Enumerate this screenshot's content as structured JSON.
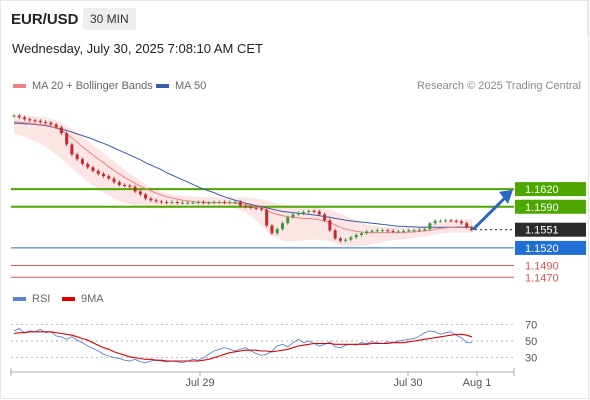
{
  "header": {
    "symbol": "EUR/USD",
    "timeframe": "30 MIN",
    "datetime": "Wednesday, July 30, 2025 7:08:10 AM CET",
    "copyright": "Research © 2025 Trading Central"
  },
  "legend": {
    "ma20": "MA 20 + Bollinger Bands",
    "ma50": "MA 50",
    "rsi": "RSI",
    "ma9": "9MA"
  },
  "colors": {
    "ma20": "#f08080",
    "ma50": "#3b5da8",
    "resistance": "#4ea600",
    "support": "#1f6fd6",
    "target": "#e05555",
    "arrow": "#2a66c2",
    "rsi": "#5b82d6",
    "ma9": "#e00000",
    "bollinger": "#fbe0e0"
  },
  "chart_data": [
    {
      "type": "candlestick",
      "ylim": [
        1.1445,
        1.1775
      ],
      "x_ticks": [
        "Jul 29",
        "Jul 30",
        "Aug 1"
      ],
      "last_price": 1.1551,
      "close": [
        1.1745,
        1.1742,
        1.1739,
        1.1737,
        1.1736,
        1.1734,
        1.1733,
        1.173,
        1.1725,
        1.1715,
        1.1696,
        1.1679,
        1.1671,
        1.1663,
        1.1657,
        1.1651,
        1.1646,
        1.1642,
        1.1638,
        1.1632,
        1.1627,
        1.1626,
        1.1624,
        1.1616,
        1.1611,
        1.1604,
        1.1601,
        1.1599,
        1.1598,
        1.1597,
        1.1598,
        1.1597,
        1.1597,
        1.1597,
        1.1597,
        1.1598,
        1.1597,
        1.1597,
        1.1598,
        1.1598,
        1.1597,
        1.1598,
        1.1598,
        1.1592,
        1.159,
        1.1588,
        1.1587,
        1.1585,
        1.1558,
        1.1545,
        1.1552,
        1.1562,
        1.1572,
        1.1577,
        1.1579,
        1.1581,
        1.1583,
        1.1582,
        1.1577,
        1.1567,
        1.155,
        1.1536,
        1.1532,
        1.1534,
        1.1538,
        1.1542,
        1.1545,
        1.1548,
        1.1549,
        1.155,
        1.155,
        1.1549,
        1.1548,
        1.1548,
        1.1549,
        1.155,
        1.155,
        1.1551,
        1.1552,
        1.1562,
        1.1566,
        1.1566,
        1.1567,
        1.1566,
        1.1565,
        1.1562,
        1.1555,
        1.1551
      ],
      "ma20": [
        1.1735,
        1.1734,
        1.1733,
        1.1732,
        1.1731,
        1.173,
        1.1729,
        1.1727,
        1.1724,
        1.172,
        1.1714,
        1.1707,
        1.17,
        1.1692,
        1.1685,
        1.1678,
        1.1671,
        1.1665,
        1.1658,
        1.1652,
        1.1646,
        1.164,
        1.1635,
        1.163,
        1.1625,
        1.1621,
        1.1617,
        1.1613,
        1.161,
        1.1607,
        1.1605,
        1.1603,
        1.1601,
        1.16,
        1.1599,
        1.1598,
        1.1598,
        1.1597,
        1.1597,
        1.1597,
        1.1597,
        1.1597,
        1.1596,
        1.1595,
        1.1594,
        1.1592,
        1.159,
        1.1588,
        1.1584,
        1.158,
        1.1577,
        1.1575,
        1.1573,
        1.1572,
        1.1571,
        1.157,
        1.157,
        1.1569,
        1.1568,
        1.1566,
        1.1563,
        1.1559,
        1.1555,
        1.1552,
        1.155,
        1.1548,
        1.1547,
        1.1546,
        1.1546,
        1.1546,
        1.1546,
        1.1546,
        1.1546,
        1.1546,
        1.1546,
        1.1547,
        1.1547,
        1.1548,
        1.1549,
        1.155,
        1.1552,
        1.1553,
        1.1554,
        1.1555,
        1.1556,
        1.1556,
        1.1556,
        1.1556
      ],
      "boll_upper": [
        1.1745,
        1.1745,
        1.1745,
        1.1745,
        1.1744,
        1.1743,
        1.1742,
        1.174,
        1.1737,
        1.1733,
        1.1728,
        1.1722,
        1.1716,
        1.1709,
        1.1702,
        1.1695,
        1.1688,
        1.1681,
        1.1674,
        1.1667,
        1.166,
        1.1653,
        1.1646,
        1.164,
        1.1634,
        1.1628,
        1.1623,
        1.1619,
        1.1616,
        1.1613,
        1.1611,
        1.161,
        1.1609,
        1.1608,
        1.1607,
        1.1607,
        1.1606,
        1.1606,
        1.1606,
        1.1606,
        1.1606,
        1.1606,
        1.1606,
        1.1606,
        1.1606,
        1.1605,
        1.1604,
        1.1603,
        1.1601,
        1.1598,
        1.1596,
        1.1594,
        1.1593,
        1.1592,
        1.1591,
        1.1591,
        1.159,
        1.159,
        1.1589,
        1.1587,
        1.1585,
        1.1582,
        1.1578,
        1.1574,
        1.157,
        1.1566,
        1.1563,
        1.156,
        1.1558,
        1.1557,
        1.1556,
        1.1555,
        1.1555,
        1.1555,
        1.1555,
        1.1555,
        1.1556,
        1.1557,
        1.1558,
        1.156,
        1.1562,
        1.1564,
        1.1565,
        1.1567,
        1.1568,
        1.1569,
        1.1569,
        1.1569
      ],
      "boll_lower": [
        1.1715,
        1.1712,
        1.1709,
        1.1705,
        1.1701,
        1.1697,
        1.1692,
        1.1686,
        1.1679,
        1.1672,
        1.1664,
        1.1656,
        1.1648,
        1.164,
        1.1633,
        1.1626,
        1.162,
        1.1614,
        1.1609,
        1.1604,
        1.16,
        1.1597,
        1.1594,
        1.1592,
        1.159,
        1.1589,
        1.1588,
        1.1587,
        1.1587,
        1.1587,
        1.1588,
        1.1588,
        1.1589,
        1.1589,
        1.159,
        1.159,
        1.159,
        1.159,
        1.159,
        1.159,
        1.1589,
        1.1588,
        1.1587,
        1.1584,
        1.158,
        1.1574,
        1.1567,
        1.1558,
        1.1548,
        1.1541,
        1.1536,
        1.1533,
        1.1531,
        1.1531,
        1.1532,
        1.1533,
        1.1534,
        1.1534,
        1.1534,
        1.1533,
        1.1531,
        1.1528,
        1.1525,
        1.1523,
        1.1522,
        1.1522,
        1.1523,
        1.1524,
        1.1526,
        1.1528,
        1.153,
        1.1532,
        1.1533,
        1.1534,
        1.1535,
        1.1536,
        1.1537,
        1.1538,
        1.1539,
        1.1541,
        1.1543,
        1.1544,
        1.1545,
        1.1546,
        1.1546,
        1.1546,
        1.1546,
        1.1546
      ],
      "ma50": [
        1.1732,
        1.1732,
        1.1731,
        1.1731,
        1.173,
        1.1729,
        1.1728,
        1.1726,
        1.1724,
        1.1722,
        1.172,
        1.1717,
        1.1714,
        1.1711,
        1.1708,
        1.1705,
        1.1701,
        1.1698,
        1.1694,
        1.169,
        1.1686,
        1.1682,
        1.1678,
        1.1674,
        1.167,
        1.1665,
        1.1661,
        1.1657,
        1.1653,
        1.1648,
        1.1644,
        1.164,
        1.1636,
        1.1632,
        1.1628,
        1.1624,
        1.162,
        1.1617,
        1.1614,
        1.161,
        1.1607,
        1.1604,
        1.1601,
        1.1599,
        1.1596,
        1.1594,
        1.1592,
        1.159,
        1.1588,
        1.1586,
        1.1584,
        1.1582,
        1.1581,
        1.158,
        1.1579,
        1.1578,
        1.1577,
        1.1576,
        1.1575,
        1.1573,
        1.1572,
        1.157,
        1.1569,
        1.1567,
        1.1566,
        1.1565,
        1.1564,
        1.1563,
        1.1562,
        1.1561,
        1.156,
        1.1559,
        1.1558,
        1.1557,
        1.1557,
        1.1556,
        1.1556,
        1.1555,
        1.1555,
        1.1555,
        1.1555,
        1.1555,
        1.1555,
        1.1555,
        1.1555,
        1.1555,
        1.1555,
        1.1555
      ],
      "levels": [
        {
          "value": 1.162,
          "label": "1.1620",
          "kind": "resistance"
        },
        {
          "value": 1.159,
          "label": "1.1590",
          "kind": "resistance"
        },
        {
          "value": 1.1551,
          "label": "1.1551",
          "kind": "last"
        },
        {
          "value": 1.152,
          "label": "1.1520",
          "kind": "support"
        },
        {
          "value": 1.149,
          "label": "1.1490",
          "kind": "target"
        },
        {
          "value": 1.147,
          "label": "1.1470",
          "kind": "target"
        }
      ]
    },
    {
      "type": "line",
      "ylim": [
        20,
        80
      ],
      "y_ticks": [
        70,
        50,
        30
      ],
      "series": [
        {
          "name": "RSI",
          "values": [
            62,
            65,
            60,
            62,
            61,
            64,
            60,
            61,
            56,
            55,
            52,
            55,
            51,
            48,
            44,
            41,
            38,
            34,
            32,
            30,
            29,
            27,
            26,
            28,
            25,
            24,
            26,
            27,
            26,
            25,
            26,
            25,
            24,
            26,
            28,
            27,
            30,
            34,
            38,
            40,
            42,
            40,
            38,
            40,
            42,
            38,
            35,
            33,
            34,
            38,
            44,
            46,
            43,
            48,
            52,
            48,
            50,
            47,
            44,
            46,
            49,
            43,
            42,
            45,
            46,
            45,
            48,
            47,
            49,
            48,
            47,
            49,
            48,
            50,
            51,
            52,
            53,
            56,
            60,
            62,
            61,
            58,
            60,
            61,
            57,
            54,
            48,
            48
          ]
        },
        {
          "name": "9MA",
          "values": [
            59,
            60,
            60,
            61,
            61,
            61,
            61,
            61,
            60,
            59,
            58,
            57,
            55,
            53,
            51,
            48,
            45,
            42,
            40,
            37,
            35,
            33,
            31,
            30,
            29,
            28,
            28,
            27,
            27,
            26,
            26,
            26,
            26,
            26,
            26,
            26,
            27,
            28,
            30,
            32,
            34,
            36,
            37,
            38,
            39,
            39,
            39,
            38,
            38,
            37,
            38,
            39,
            40,
            42,
            44,
            45,
            46,
            47,
            47,
            47,
            47,
            46,
            46,
            46,
            46,
            46,
            46,
            46,
            47,
            47,
            47,
            47,
            48,
            48,
            48,
            49,
            50,
            51,
            52,
            53,
            54,
            55,
            56,
            57,
            58,
            58,
            57,
            55
          ]
        }
      ]
    }
  ]
}
